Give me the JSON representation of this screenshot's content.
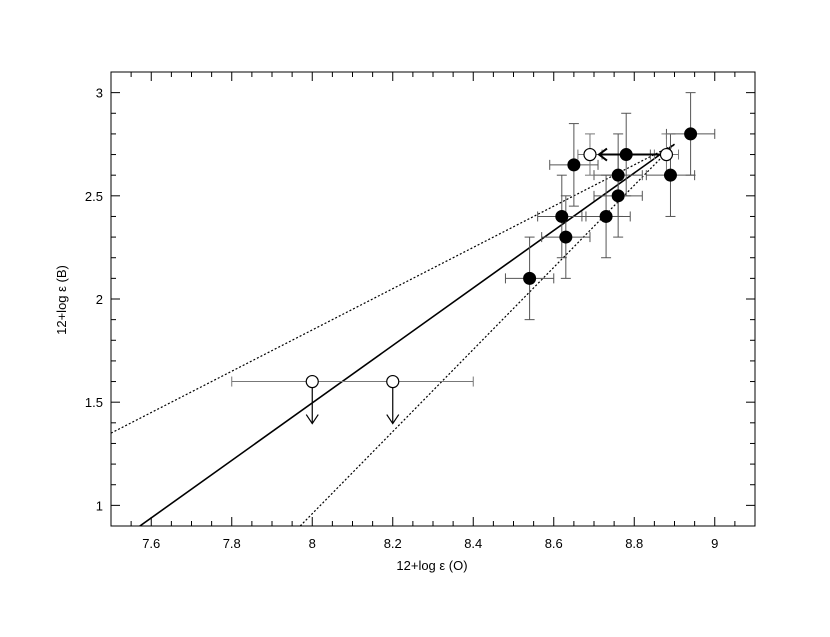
{
  "chart_data": {
    "type": "scatter",
    "xlabel": "12+log ε (O)",
    "ylabel": "12+log ε (B)",
    "xlim": [
      7.5,
      9.1
    ],
    "ylim": [
      0.9,
      3.1
    ],
    "xticks": [
      7.6,
      7.8,
      8.0,
      8.2,
      8.4,
      8.6,
      8.8,
      9.0
    ],
    "xtick_labels": [
      "7.6",
      "7.8",
      "8",
      "8.2",
      "8.4",
      "8.6",
      "8.8",
      "9"
    ],
    "yticks": [
      1.0,
      1.5,
      2.0,
      2.5,
      3.0
    ],
    "ytick_labels": [
      "1",
      "1.5",
      "2",
      "2.5",
      "3"
    ],
    "grid": false,
    "series": [
      {
        "marker": "filled-circle",
        "points": [
          {
            "x": 8.54,
            "y": 2.1,
            "xerr": 0.06,
            "yerr": 0.2
          },
          {
            "x": 8.62,
            "y": 2.4,
            "xerr": 0.06,
            "yerr": 0.2
          },
          {
            "x": 8.63,
            "y": 2.3,
            "xerr": 0.06,
            "yerr": 0.2
          },
          {
            "x": 8.65,
            "y": 2.65,
            "xerr": 0.06,
            "yerr": 0.2
          },
          {
            "x": 8.73,
            "y": 2.4,
            "xerr": 0.06,
            "yerr": 0.2
          },
          {
            "x": 8.76,
            "y": 2.6,
            "xerr": 0.06,
            "yerr": 0.2
          },
          {
            "x": 8.76,
            "y": 2.5,
            "xerr": 0.06,
            "yerr": 0.2
          },
          {
            "x": 8.78,
            "y": 2.7,
            "xerr": 0.06,
            "yerr": 0.2
          },
          {
            "x": 8.89,
            "y": 2.6,
            "xerr": 0.06,
            "yerr": 0.2
          },
          {
            "x": 8.94,
            "y": 2.8,
            "xerr": 0.06,
            "yerr": 0.2
          }
        ]
      },
      {
        "marker": "open-circle",
        "upper_limit": true,
        "points": [
          {
            "x": 8.0,
            "y": 1.6,
            "xerr": 0.2
          },
          {
            "x": 8.2,
            "y": 1.6,
            "xerr": 0.2
          }
        ]
      },
      {
        "marker": "open-circle",
        "points": [
          {
            "x": 8.69,
            "y": 2.7,
            "xerr": 0.03,
            "yerr": 0.1
          },
          {
            "x": 8.88,
            "y": 2.7,
            "xerr": 0.03,
            "yerr": 0.1
          }
        ],
        "arrow": {
          "from_x": 8.88,
          "to_x": 8.69,
          "y": 2.7
        }
      }
    ],
    "lines": [
      {
        "style": "solid",
        "x": [
          7.5,
          8.9
        ],
        "y": [
          0.8,
          2.75
        ]
      },
      {
        "style": "dotted",
        "x": [
          7.5,
          8.9
        ],
        "y": [
          1.35,
          2.75
        ]
      },
      {
        "style": "dotted",
        "x": [
          7.97,
          8.9
        ],
        "y": [
          0.9,
          2.75
        ]
      }
    ]
  }
}
